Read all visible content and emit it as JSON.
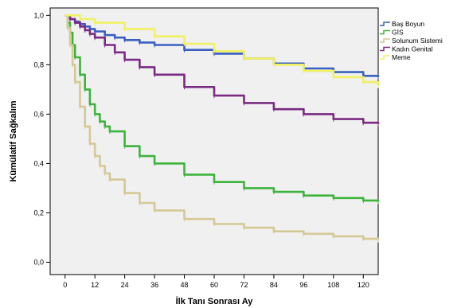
{
  "chart_data": {
    "type": "line",
    "xlabel": "İlk Tanı Sonrası Ay",
    "ylabel": "Kümülatif Sağkalım",
    "xlim": [
      -6,
      126
    ],
    "ylim": [
      -0.05,
      1.03
    ],
    "x_ticks": [
      0,
      12,
      24,
      36,
      48,
      60,
      72,
      84,
      96,
      108,
      120
    ],
    "y_ticks": [
      0.0,
      0.2,
      0.4,
      0.6,
      0.8,
      1.0
    ],
    "y_tick_labels": [
      "0,0",
      "0,2",
      "0,4",
      "0,6",
      "0,8",
      "1,0"
    ],
    "grid": false,
    "legend_position": "right",
    "series": [
      {
        "name": "Baş Boyun",
        "color": "#3a5fbf",
        "x": [
          0,
          2,
          4,
          6,
          8,
          10,
          12,
          16,
          20,
          24,
          30,
          36,
          48,
          60,
          72,
          84,
          96,
          108,
          120,
          126
        ],
        "y": [
          1.0,
          0.985,
          0.975,
          0.965,
          0.955,
          0.945,
          0.935,
          0.92,
          0.91,
          0.9,
          0.89,
          0.88,
          0.86,
          0.845,
          0.825,
          0.805,
          0.785,
          0.77,
          0.755,
          0.75
        ]
      },
      {
        "name": "GİS",
        "color": "#3cb43c",
        "x": [
          0,
          1,
          2,
          3,
          4,
          6,
          8,
          10,
          12,
          14,
          16,
          18,
          24,
          30,
          36,
          48,
          60,
          72,
          84,
          96,
          108,
          120,
          126
        ],
        "y": [
          1.0,
          0.97,
          0.93,
          0.88,
          0.83,
          0.76,
          0.7,
          0.64,
          0.6,
          0.57,
          0.55,
          0.53,
          0.47,
          0.43,
          0.4,
          0.355,
          0.325,
          0.3,
          0.285,
          0.27,
          0.26,
          0.25,
          0.245
        ]
      },
      {
        "name": "Solunum Sistemi",
        "color": "#d4c994",
        "x": [
          0,
          1,
          2,
          3,
          4,
          6,
          8,
          10,
          12,
          14,
          16,
          18,
          24,
          30,
          36,
          48,
          60,
          72,
          84,
          96,
          108,
          120,
          126
        ],
        "y": [
          1.0,
          0.95,
          0.88,
          0.8,
          0.73,
          0.63,
          0.55,
          0.48,
          0.43,
          0.39,
          0.36,
          0.335,
          0.28,
          0.24,
          0.21,
          0.175,
          0.155,
          0.14,
          0.125,
          0.115,
          0.105,
          0.095,
          0.09
        ]
      },
      {
        "name": "Kadın Genital",
        "color": "#7a2a82",
        "x": [
          0,
          2,
          4,
          6,
          8,
          10,
          12,
          16,
          20,
          24,
          30,
          36,
          48,
          60,
          72,
          84,
          96,
          108,
          120,
          126
        ],
        "y": [
          1.0,
          0.985,
          0.97,
          0.955,
          0.94,
          0.925,
          0.91,
          0.88,
          0.85,
          0.82,
          0.79,
          0.76,
          0.71,
          0.675,
          0.645,
          0.62,
          0.6,
          0.58,
          0.565,
          0.56
        ]
      },
      {
        "name": "Meme",
        "color": "#f0f060",
        "x": [
          0,
          6,
          12,
          24,
          36,
          48,
          60,
          72,
          84,
          96,
          108,
          120,
          126
        ],
        "y": [
          1.0,
          0.985,
          0.97,
          0.945,
          0.915,
          0.885,
          0.855,
          0.825,
          0.8,
          0.775,
          0.75,
          0.73,
          0.715
        ]
      }
    ]
  }
}
